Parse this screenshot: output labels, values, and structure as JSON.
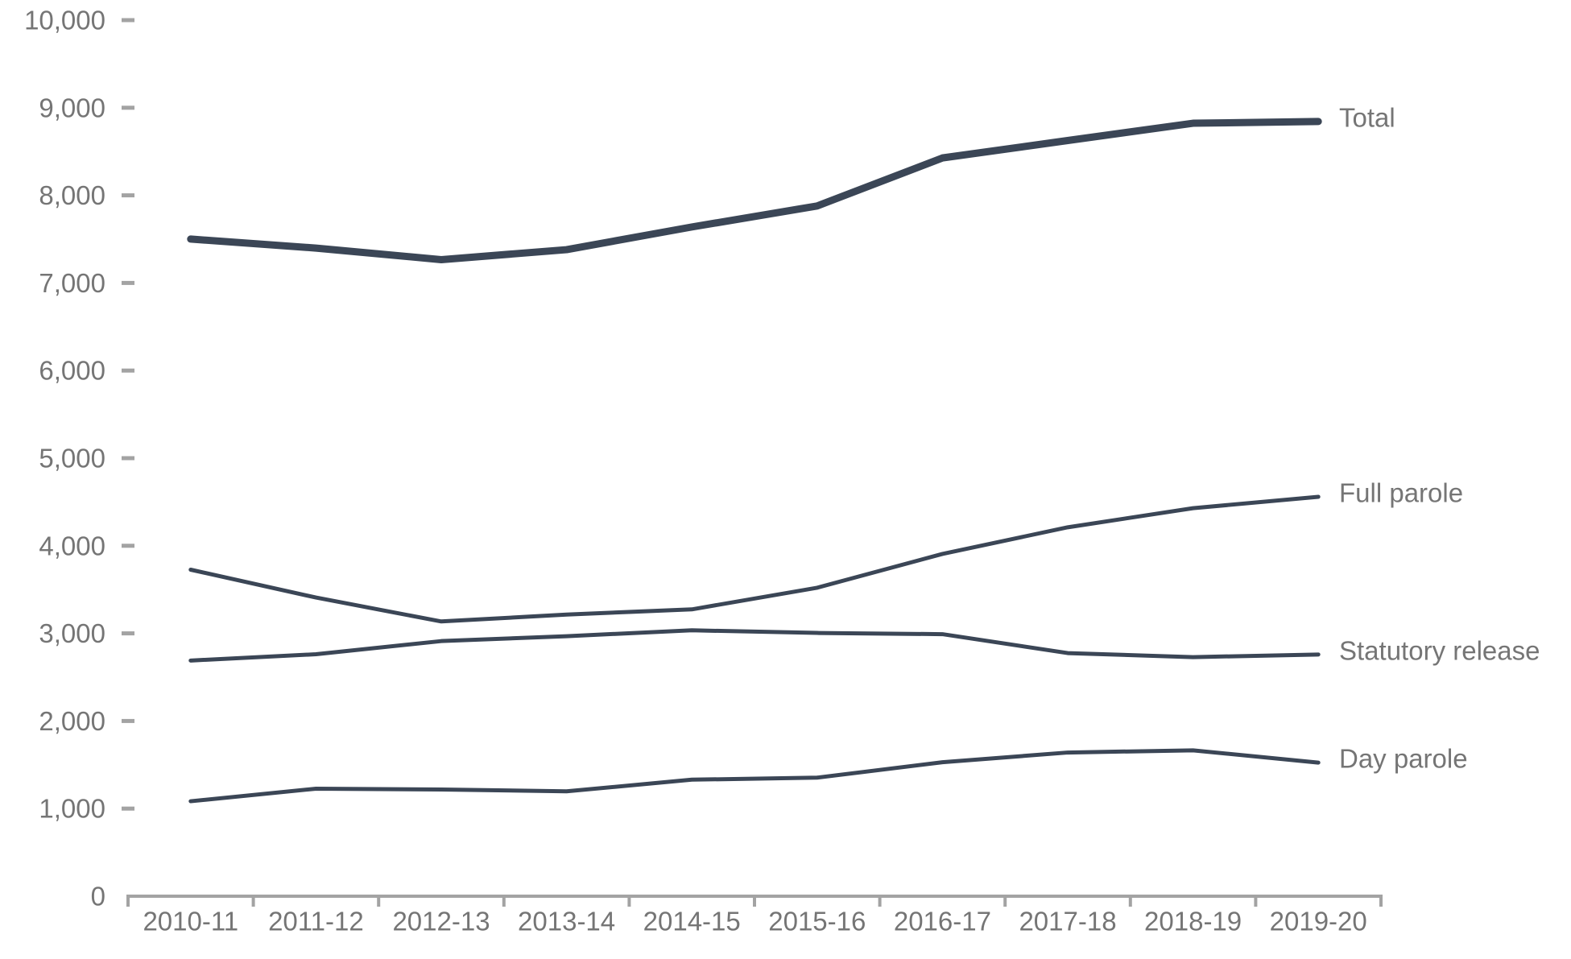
{
  "chart_data": {
    "type": "line",
    "categories": [
      "2010-11",
      "2011-12",
      "2012-13",
      "2013-14",
      "2014-15",
      "2015-16",
      "2016-17",
      "2017-18",
      "2018-19",
      "2019-20"
    ],
    "series": [
      {
        "name": "Total",
        "values": [
          7501,
          7398,
          7266,
          7380,
          7639,
          7879,
          8427,
          8626,
          8823,
          8843
        ],
        "emphasis": "thick"
      },
      {
        "name": "Full parole",
        "values": [
          3727,
          3409,
          3136,
          3215,
          3274,
          3521,
          3907,
          4211,
          4429,
          4559
        ],
        "emphasis": "normal"
      },
      {
        "name": "Statutory release",
        "values": [
          2690,
          2762,
          2912,
          2968,
          3035,
          3005,
          2991,
          2775,
          2729,
          2759
        ],
        "emphasis": "normal"
      },
      {
        "name": "Day parole",
        "values": [
          1084,
          1227,
          1218,
          1197,
          1330,
          1353,
          1529,
          1640,
          1665,
          1525
        ],
        "emphasis": "normal"
      }
    ],
    "title": "",
    "xlabel": "",
    "ylabel": "",
    "ylim": [
      0,
      10000
    ],
    "y_tick_step": 1000,
    "y_tick_labels": [
      "0",
      "1,000",
      "2,000",
      "3,000",
      "4,000",
      "5,000",
      "6,000",
      "7,000",
      "8,000",
      "9,000",
      "10,000"
    ],
    "grid": false,
    "legend_position": "right-edge-series-labels",
    "colors": {
      "series_line": "#3b4656",
      "axis_line": "#a3a3a3",
      "tick_dash": "#a3a3a3",
      "label_text": "#757575"
    }
  }
}
